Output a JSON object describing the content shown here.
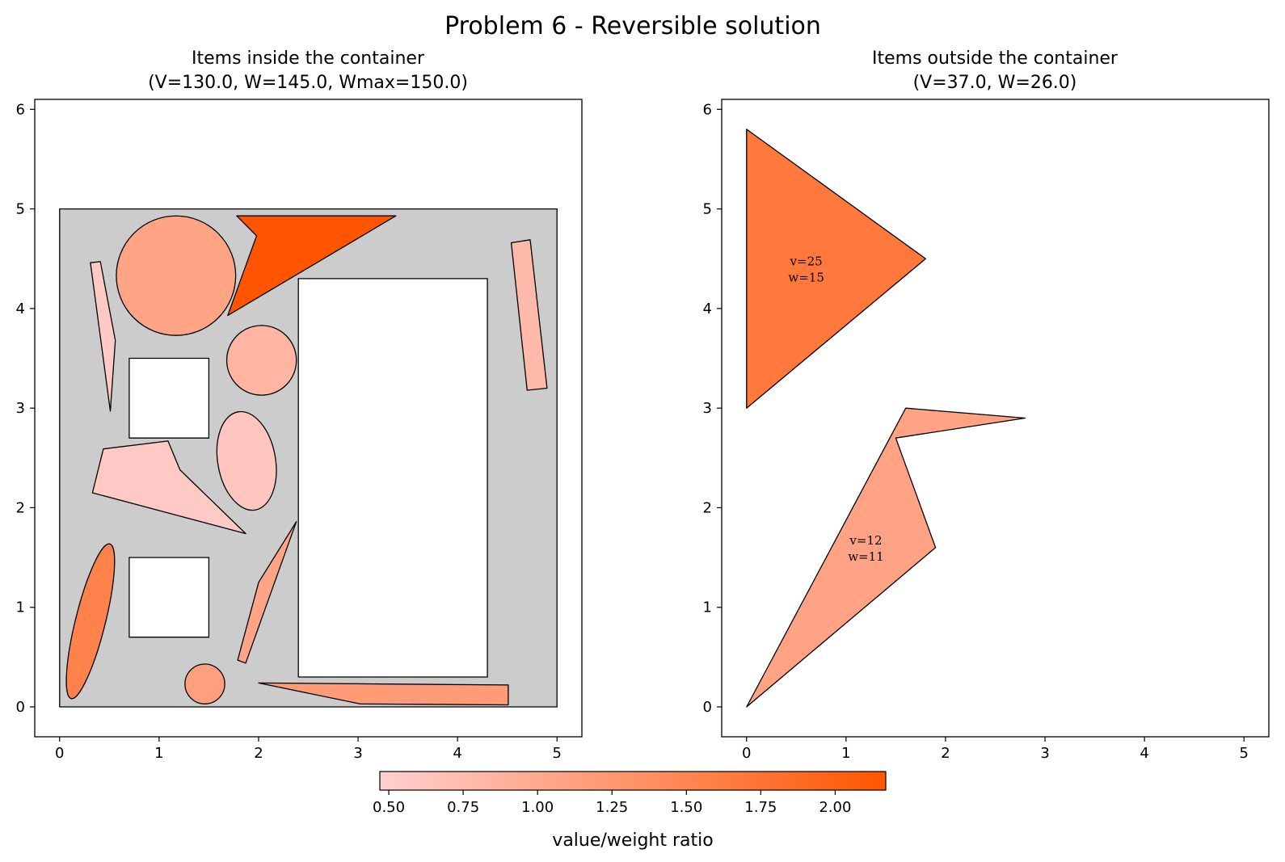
{
  "figure": {
    "suptitle": "Problem 6 - Reversible solution"
  },
  "panels": [
    {
      "title_line1": "Items inside the container",
      "title_line2": "(V=130.0, W=145.0, Wmax=150.0)"
    },
    {
      "title_line1": "Items outside the container",
      "title_line2": "(V=37.0, W=26.0)"
    }
  ],
  "colorbar": {
    "label": "value/weight ratio",
    "min": 0.47,
    "max": 2.17,
    "ticks": [
      "0.50",
      "0.75",
      "1.00",
      "1.25",
      "1.50",
      "1.75",
      "2.00"
    ],
    "tick_values": [
      0.5,
      0.75,
      1.0,
      1.25,
      1.5,
      1.75,
      2.0
    ],
    "color_low": "#ffd0d0",
    "color_high": "#ff5500"
  },
  "chart_data": [
    {
      "type": "scatter",
      "title": "Items inside the container\n(V=130.0, W=145.0, Wmax=150.0)",
      "xlim": [
        -0.25,
        5.25
      ],
      "ylim": [
        -0.3,
        6.1
      ],
      "xticks": [
        "0",
        "1",
        "2",
        "3",
        "4",
        "5"
      ],
      "yticks": [
        "0",
        "1",
        "2",
        "3",
        "4",
        "5",
        "6"
      ],
      "container": {
        "polygon": [
          [
            0,
            0
          ],
          [
            5,
            0
          ],
          [
            5,
            5
          ],
          [
            0,
            5
          ]
        ],
        "fill": "#cccccc"
      },
      "holes": [
        {
          "name": "hole-large",
          "polygon": [
            [
              2.4,
              0.3
            ],
            [
              4.3,
              0.3
            ],
            [
              4.3,
              4.3
            ],
            [
              2.4,
              4.3
            ]
          ]
        },
        {
          "name": "hole-upper-square",
          "polygon": [
            [
              0.7,
              2.7
            ],
            [
              1.5,
              2.7
            ],
            [
              1.5,
              3.5
            ],
            [
              0.7,
              3.5
            ]
          ]
        },
        {
          "name": "hole-lower-square",
          "polygon": [
            [
              0.7,
              0.7
            ],
            [
              1.5,
              0.7
            ],
            [
              1.5,
              1.5
            ],
            [
              0.7,
              1.5
            ]
          ]
        }
      ],
      "items": [
        {
          "name": "item-large-circle",
          "shape": "ellipse",
          "cx": 1.17,
          "cy": 4.33,
          "rx": 0.6,
          "ry": 0.6,
          "angle": 0,
          "ratio": 1.08
        },
        {
          "name": "item-small-circle-upper",
          "shape": "ellipse",
          "cx": 2.03,
          "cy": 3.48,
          "rx": 0.35,
          "ry": 0.35,
          "angle": 0,
          "ratio": 0.85
        },
        {
          "name": "item-small-circle-lower",
          "shape": "ellipse",
          "cx": 1.46,
          "cy": 0.23,
          "rx": 0.2,
          "ry": 0.2,
          "angle": 0,
          "ratio": 1.15
        },
        {
          "name": "item-oval-middle",
          "shape": "ellipse",
          "cx": 1.88,
          "cy": 2.47,
          "rx": 0.29,
          "ry": 0.5,
          "angle": 10,
          "ratio": 0.62
        },
        {
          "name": "item-oval-long",
          "shape": "ellipse",
          "cx": 0.31,
          "cy": 0.86,
          "rx": 0.15,
          "ry": 0.8,
          "angle": -14,
          "ratio": 1.55
        },
        {
          "name": "item-big-triangle",
          "shape": "polygon",
          "points": [
            [
              1.78,
              4.93
            ],
            [
              3.38,
              4.93
            ],
            [
              1.69,
              3.93
            ],
            [
              1.98,
              4.73
            ]
          ],
          "ratio": 2.17
        },
        {
          "name": "item-thin-spike-left",
          "shape": "polygon",
          "points": [
            [
              0.31,
              4.46
            ],
            [
              0.41,
              4.47
            ],
            [
              0.56,
              3.68
            ],
            [
              0.51,
              2.97
            ]
          ],
          "ratio": 0.55
        },
        {
          "name": "item-quad-left",
          "shape": "polygon",
          "points": [
            [
              0.44,
              2.59
            ],
            [
              1.09,
              2.67
            ],
            [
              1.21,
              2.38
            ],
            [
              1.87,
              1.74
            ],
            [
              0.33,
              2.15
            ]
          ],
          "ratio": 0.55
        },
        {
          "name": "item-rect-right",
          "shape": "polygon",
          "points": [
            [
              4.54,
              4.66
            ],
            [
              4.73,
              4.69
            ],
            [
              4.9,
              3.2
            ],
            [
              4.7,
              3.18
            ]
          ],
          "ratio": 0.78
        },
        {
          "name": "item-thin-spike-middle",
          "shape": "polygon",
          "points": [
            [
              1.79,
              0.47
            ],
            [
              1.87,
              0.44
            ],
            [
              2.38,
              1.86
            ],
            [
              2.0,
              1.25
            ]
          ],
          "ratio": 1.08
        },
        {
          "name": "item-wedge-bottom",
          "shape": "polygon",
          "points": [
            [
              2.0,
              0.24
            ],
            [
              4.51,
              0.22
            ],
            [
              4.51,
              0.02
            ],
            [
              3.02,
              0.03
            ]
          ],
          "ratio": 1.2
        }
      ]
    },
    {
      "type": "scatter",
      "title": "Items outside the container\n(V=37.0, W=26.0)",
      "xlim": [
        -0.25,
        5.25
      ],
      "ylim": [
        -0.3,
        6.1
      ],
      "xticks": [
        "0",
        "1",
        "2",
        "3",
        "4",
        "5"
      ],
      "yticks": [
        "0",
        "1",
        "2",
        "3",
        "4",
        "5",
        "6"
      ],
      "items": [
        {
          "name": "outside-triangle",
          "shape": "polygon",
          "points": [
            [
              0,
              3
            ],
            [
              0,
              5.8
            ],
            [
              1.8,
              4.5
            ]
          ],
          "ratio": 1.67,
          "label_x": 0.6,
          "label_y": 4.4,
          "label_v": "v=25",
          "label_w": "w=15"
        },
        {
          "name": "outside-arrow",
          "shape": "polygon",
          "points": [
            [
              0,
              0
            ],
            [
              1.9,
              1.6
            ],
            [
              1.5,
              2.7
            ],
            [
              2.8,
              2.9
            ],
            [
              1.6,
              3.0
            ]
          ],
          "ratio": 1.09,
          "label_x": 1.2,
          "label_y": 1.6,
          "label_v": "v=12",
          "label_w": "w=11"
        }
      ]
    }
  ]
}
